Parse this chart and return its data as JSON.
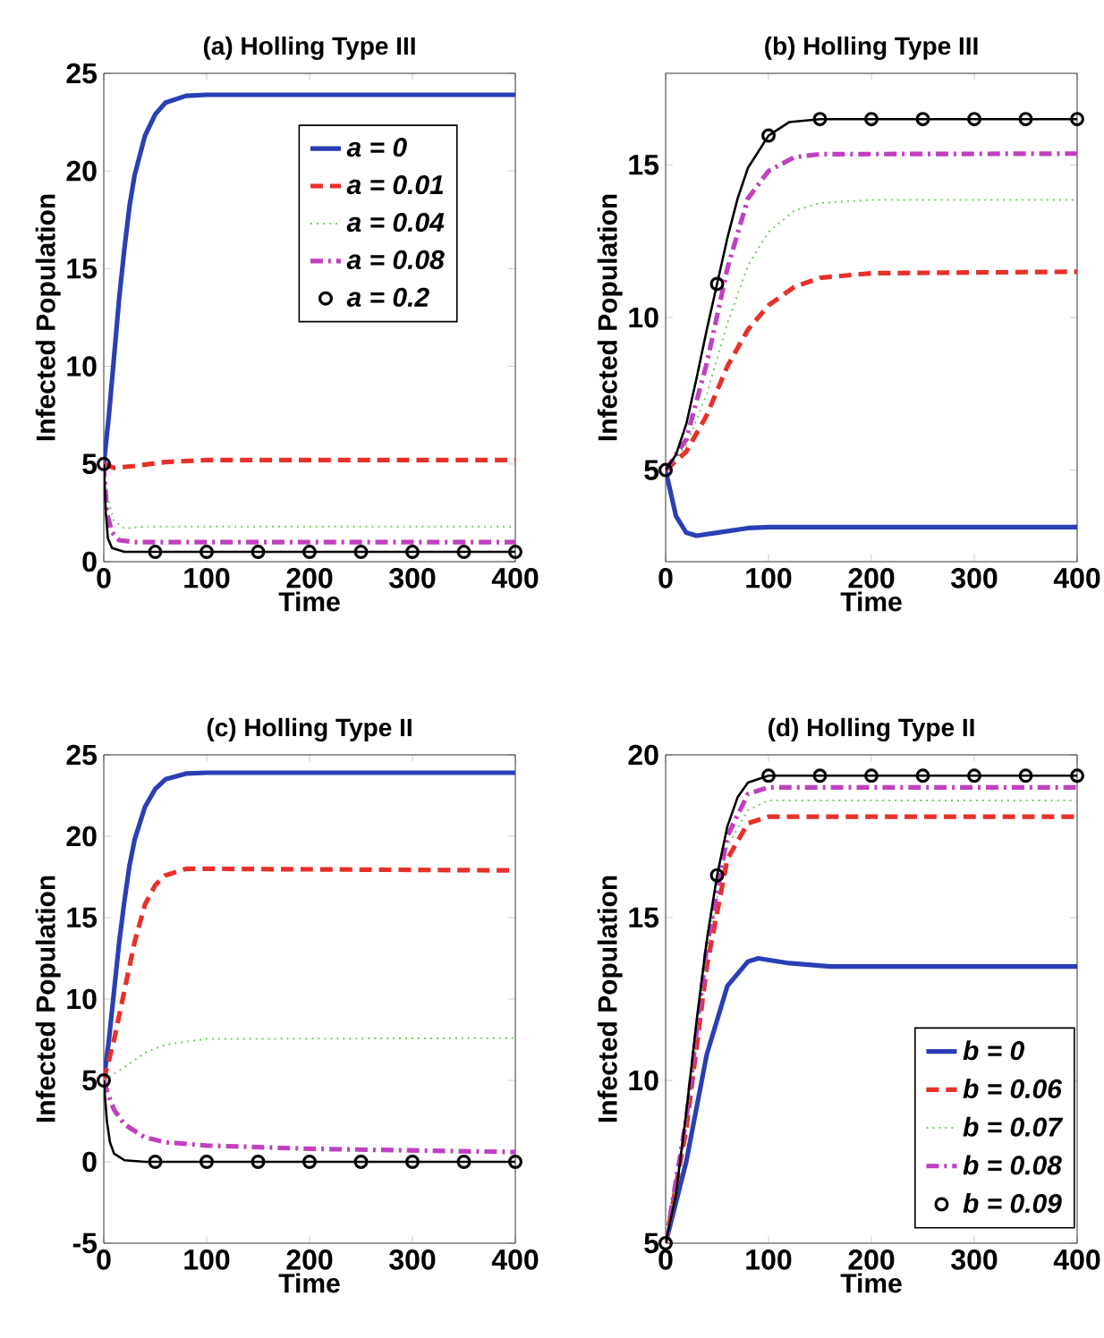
{
  "chart_data": [
    {
      "type": "line",
      "title": "(a) Holling Type III",
      "xlabel": "Time",
      "ylabel": "Infected Population",
      "xlim": [
        0,
        400
      ],
      "ylim": [
        0,
        25
      ],
      "xticks": [
        0,
        100,
        200,
        300,
        400
      ],
      "yticks": [
        0,
        5,
        10,
        15,
        20,
        25
      ],
      "legend": "top right",
      "series": [
        {
          "name": "a = 0",
          "color": "#2a3fb5",
          "line_style": "solid",
          "marker": "none",
          "x": [
            0,
            5,
            10,
            15,
            20,
            25,
            30,
            40,
            50,
            60,
            80,
            100,
            400
          ],
          "values": [
            5,
            7.5,
            10.5,
            13.5,
            16,
            18.2,
            19.8,
            21.8,
            22.9,
            23.5,
            23.85,
            23.9,
            23.9
          ]
        },
        {
          "name": "a = 0.01",
          "color": "#e8302a",
          "line_style": "dashed",
          "marker": "none",
          "x": [
            0,
            10,
            30,
            60,
            100,
            400
          ],
          "values": [
            5,
            4.8,
            4.9,
            5.1,
            5.2,
            5.2
          ]
        },
        {
          "name": "a = 0.04",
          "color": "#6fcf5f",
          "line_style": "dotted",
          "marker": "none",
          "x": [
            0,
            5,
            10,
            20,
            40,
            400
          ],
          "values": [
            5,
            3,
            2.1,
            1.7,
            1.8,
            1.8
          ]
        },
        {
          "name": "a = 0.08",
          "color": "#c040c0",
          "line_style": "dashdot",
          "marker": "none",
          "x": [
            0,
            3,
            8,
            15,
            30,
            400
          ],
          "values": [
            5,
            2.5,
            1.5,
            1.1,
            1.0,
            1.0
          ]
        },
        {
          "color": "#000000",
          "line_style": "solid",
          "marker": "none",
          "x": [
            0,
            2,
            4,
            8,
            20,
            400
          ],
          "values": [
            5,
            2.5,
            1.2,
            0.7,
            0.5,
            0.5
          ]
        },
        {
          "name": "a = 0.2",
          "type": "scatter",
          "color": "#000000",
          "marker": "circle",
          "x": [
            0,
            50,
            100,
            150,
            200,
            250,
            300,
            350,
            400
          ],
          "values": [
            5,
            0.5,
            0.5,
            0.5,
            0.5,
            0.5,
            0.5,
            0.5,
            0.5
          ]
        }
      ]
    },
    {
      "type": "line",
      "title": "(b) Holling Type III",
      "xlabel": "Time",
      "ylabel": "Infected Population",
      "xlim": [
        0,
        400
      ],
      "ylim": [
        2,
        18
      ],
      "xticks": [
        0,
        100,
        200,
        300,
        400
      ],
      "yticks": [
        5,
        10,
        15
      ],
      "series": [
        {
          "color": "#2a3fb5",
          "line_style": "solid",
          "marker": "none",
          "x": [
            0,
            10,
            20,
            30,
            50,
            80,
            100,
            400
          ],
          "values": [
            5,
            3.5,
            2.95,
            2.85,
            2.95,
            3.1,
            3.13,
            3.13
          ]
        },
        {
          "color": "#e8302a",
          "line_style": "dashed",
          "marker": "none",
          "x": [
            0,
            20,
            40,
            60,
            80,
            100,
            125,
            150,
            200,
            400
          ],
          "values": [
            5,
            5.6,
            6.8,
            8.4,
            9.6,
            10.4,
            11.0,
            11.3,
            11.45,
            11.5
          ]
        },
        {
          "color": "#6fcf5f",
          "line_style": "dotted",
          "marker": "none",
          "x": [
            0,
            20,
            40,
            60,
            80,
            100,
            125,
            150,
            200,
            400
          ],
          "values": [
            5,
            5.8,
            7.5,
            9.8,
            11.7,
            12.8,
            13.5,
            13.75,
            13.85,
            13.85
          ]
        },
        {
          "color": "#c040c0",
          "line_style": "dashdot",
          "marker": "none",
          "x": [
            0,
            20,
            40,
            60,
            80,
            100,
            125,
            150,
            400
          ],
          "values": [
            5,
            6,
            8.5,
            11.6,
            13.9,
            14.8,
            15.25,
            15.35,
            15.37
          ]
        },
        {
          "color": "#000000",
          "line_style": "solid",
          "marker": "none",
          "x": [
            0,
            10,
            20,
            30,
            40,
            50,
            60,
            70,
            80,
            100,
            120,
            150,
            400
          ],
          "values": [
            5,
            5.5,
            6.5,
            8,
            9.6,
            11.1,
            12.6,
            13.9,
            14.9,
            15.96,
            16.4,
            16.5,
            16.5
          ]
        },
        {
          "type": "scatter",
          "color": "#000000",
          "marker": "circle",
          "x": [
            0,
            50,
            100,
            150,
            200,
            250,
            300,
            350,
            400
          ],
          "values": [
            5,
            11.1,
            15.96,
            16.5,
            16.5,
            16.5,
            16.5,
            16.5,
            16.5
          ]
        }
      ]
    },
    {
      "type": "line",
      "title": "(c) Holling Type II",
      "xlabel": "Time",
      "ylabel": "Infected Population",
      "xlim": [
        0,
        400
      ],
      "ylim": [
        -5,
        25
      ],
      "xticks": [
        0,
        100,
        200,
        300,
        400
      ],
      "yticks": [
        -5,
        0,
        5,
        10,
        15,
        20,
        25
      ],
      "series": [
        {
          "color": "#2a3fb5",
          "line_style": "solid",
          "marker": "none",
          "x": [
            0,
            5,
            10,
            15,
            20,
            25,
            30,
            40,
            50,
            60,
            80,
            100,
            400
          ],
          "values": [
            5,
            7.5,
            10.5,
            13.5,
            16,
            18.2,
            19.8,
            21.8,
            22.9,
            23.5,
            23.85,
            23.9,
            23.9
          ]
        },
        {
          "color": "#e8302a",
          "line_style": "dashed",
          "marker": "none",
          "x": [
            0,
            10,
            20,
            30,
            40,
            50,
            60,
            80,
            100,
            400
          ],
          "values": [
            5,
            7.5,
            10.5,
            13.5,
            15.8,
            17.0,
            17.6,
            18.0,
            18.0,
            17.9
          ]
        },
        {
          "color": "#6fcf5f",
          "line_style": "dotted",
          "marker": "none",
          "x": [
            0,
            20,
            40,
            60,
            100,
            400
          ],
          "values": [
            5,
            5.8,
            6.7,
            7.2,
            7.55,
            7.6
          ]
        },
        {
          "color": "#c040c0",
          "line_style": "dashdot",
          "marker": "none",
          "x": [
            0,
            5,
            10,
            20,
            40,
            60,
            100,
            200,
            300,
            400
          ],
          "values": [
            5,
            4,
            3.2,
            2.3,
            1.5,
            1.2,
            1.0,
            0.8,
            0.7,
            0.6
          ]
        },
        {
          "color": "#000000",
          "line_style": "solid",
          "marker": "none",
          "x": [
            0,
            3,
            6,
            10,
            20,
            40,
            400
          ],
          "values": [
            5,
            2.5,
            1.2,
            0.5,
            0.1,
            0,
            0
          ]
        },
        {
          "type": "scatter",
          "color": "#000000",
          "marker": "circle",
          "x": [
            0,
            50,
            100,
            150,
            200,
            250,
            300,
            350,
            400
          ],
          "values": [
            5,
            0,
            0,
            0,
            0,
            0,
            0,
            0,
            0
          ]
        }
      ]
    },
    {
      "type": "line",
      "title": "(d) Holling Type II",
      "xlabel": "Time",
      "ylabel": "Infected Population",
      "xlim": [
        0,
        400
      ],
      "ylim": [
        5,
        20
      ],
      "xticks": [
        0,
        100,
        200,
        300,
        400
      ],
      "yticks": [
        5,
        10,
        15,
        20
      ],
      "legend": "bottom right",
      "series": [
        {
          "name": "b = 0",
          "color": "#2a3fb5",
          "line_style": "solid",
          "marker": "none",
          "x": [
            0,
            20,
            40,
            60,
            80,
            90,
            120,
            160,
            400
          ],
          "values": [
            5,
            7.5,
            10.8,
            12.9,
            13.65,
            13.75,
            13.6,
            13.5,
            13.5
          ]
        },
        {
          "name": "b = 0.06",
          "color": "#e8302a",
          "line_style": "dashed",
          "marker": "none",
          "x": [
            0,
            20,
            40,
            60,
            80,
            100,
            400
          ],
          "values": [
            5,
            8.5,
            13.5,
            16.8,
            17.9,
            18.1,
            18.1
          ]
        },
        {
          "name": "b = 0.07",
          "color": "#6fcf5f",
          "line_style": "dotted",
          "marker": "none",
          "x": [
            0,
            20,
            40,
            60,
            80,
            100,
            400
          ],
          "values": [
            5,
            8.7,
            14,
            17.2,
            18.3,
            18.6,
            18.6
          ]
        },
        {
          "name": "b = 0.08",
          "color": "#c040c0",
          "line_style": "dashdot",
          "marker": "none",
          "x": [
            0,
            20,
            40,
            60,
            80,
            100,
            400
          ],
          "values": [
            5,
            8.8,
            14.1,
            17.5,
            18.8,
            19.0,
            19.0
          ]
        },
        {
          "color": "#000000",
          "line_style": "solid",
          "marker": "none",
          "x": [
            0,
            10,
            20,
            30,
            40,
            50,
            60,
            70,
            80,
            100,
            400
          ],
          "values": [
            5,
            6.5,
            9,
            11.8,
            14.3,
            16.3,
            17.8,
            18.7,
            19.15,
            19.36,
            19.36
          ]
        },
        {
          "name": "b = 0.09",
          "type": "scatter",
          "color": "#000000",
          "marker": "circle",
          "x": [
            0,
            50,
            100,
            150,
            200,
            250,
            300,
            350,
            400
          ],
          "values": [
            5,
            16.3,
            19.36,
            19.36,
            19.36,
            19.36,
            19.36,
            19.36,
            19.36
          ]
        }
      ]
    }
  ]
}
